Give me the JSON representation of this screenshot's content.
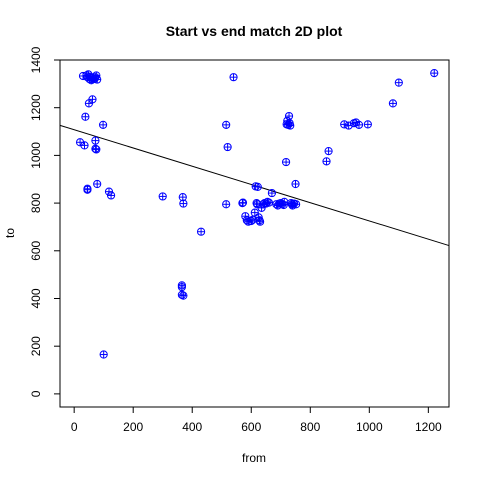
{
  "chart_data": {
    "type": "scatter",
    "title": "Start vs end match 2D plot",
    "xlabel": "from",
    "ylabel": "to",
    "xlim": [
      -48,
      1270
    ],
    "ylim": [
      -55,
      1400
    ],
    "x_ticks": [
      0,
      200,
      400,
      600,
      800,
      1000,
      1200
    ],
    "y_ticks": [
      0,
      200,
      400,
      600,
      800,
      1000,
      1200,
      1400
    ],
    "grid": false,
    "legend": "none",
    "point_color": "#0000ff",
    "marker": "circle-plus",
    "regression_line": {
      "x": [
        -48,
        1270
      ],
      "y": [
        1126,
        622
      ]
    },
    "points": [
      {
        "x": 20,
        "y": 1055
      },
      {
        "x": 30,
        "y": 1333
      },
      {
        "x": 35,
        "y": 1042
      },
      {
        "x": 38,
        "y": 1162
      },
      {
        "x": 42,
        "y": 1335
      },
      {
        "x": 45,
        "y": 1328
      },
      {
        "x": 48,
        "y": 1340
      },
      {
        "x": 50,
        "y": 1218
      },
      {
        "x": 52,
        "y": 1320
      },
      {
        "x": 55,
        "y": 1330
      },
      {
        "x": 58,
        "y": 1315
      },
      {
        "x": 60,
        "y": 1325
      },
      {
        "x": 62,
        "y": 1235
      },
      {
        "x": 65,
        "y": 1320
      },
      {
        "x": 70,
        "y": 1322
      },
      {
        "x": 72,
        "y": 1328
      },
      {
        "x": 75,
        "y": 1335
      },
      {
        "x": 78,
        "y": 1318
      },
      {
        "x": 45,
        "y": 860
      },
      {
        "x": 45,
        "y": 856
      },
      {
        "x": 72,
        "y": 1062
      },
      {
        "x": 72,
        "y": 1028
      },
      {
        "x": 75,
        "y": 1025
      },
      {
        "x": 78,
        "y": 880
      },
      {
        "x": 98,
        "y": 1128
      },
      {
        "x": 100,
        "y": 165
      },
      {
        "x": 118,
        "y": 848
      },
      {
        "x": 125,
        "y": 832
      },
      {
        "x": 300,
        "y": 828
      },
      {
        "x": 365,
        "y": 455
      },
      {
        "x": 365,
        "y": 448
      },
      {
        "x": 365,
        "y": 415
      },
      {
        "x": 370,
        "y": 412
      },
      {
        "x": 368,
        "y": 825
      },
      {
        "x": 370,
        "y": 798
      },
      {
        "x": 430,
        "y": 680
      },
      {
        "x": 515,
        "y": 1128
      },
      {
        "x": 515,
        "y": 795
      },
      {
        "x": 520,
        "y": 1035
      },
      {
        "x": 540,
        "y": 1328
      },
      {
        "x": 570,
        "y": 800
      },
      {
        "x": 572,
        "y": 802
      },
      {
        "x": 580,
        "y": 745
      },
      {
        "x": 585,
        "y": 728
      },
      {
        "x": 590,
        "y": 722
      },
      {
        "x": 600,
        "y": 725
      },
      {
        "x": 605,
        "y": 730
      },
      {
        "x": 612,
        "y": 760
      },
      {
        "x": 615,
        "y": 870
      },
      {
        "x": 618,
        "y": 800
      },
      {
        "x": 620,
        "y": 795
      },
      {
        "x": 622,
        "y": 868
      },
      {
        "x": 625,
        "y": 740
      },
      {
        "x": 628,
        "y": 728
      },
      {
        "x": 630,
        "y": 722
      },
      {
        "x": 635,
        "y": 780
      },
      {
        "x": 640,
        "y": 795
      },
      {
        "x": 645,
        "y": 800
      },
      {
        "x": 650,
        "y": 798
      },
      {
        "x": 655,
        "y": 805
      },
      {
        "x": 660,
        "y": 802
      },
      {
        "x": 670,
        "y": 842
      },
      {
        "x": 685,
        "y": 795
      },
      {
        "x": 690,
        "y": 790
      },
      {
        "x": 695,
        "y": 798
      },
      {
        "x": 700,
        "y": 800
      },
      {
        "x": 705,
        "y": 795
      },
      {
        "x": 710,
        "y": 792
      },
      {
        "x": 712,
        "y": 805
      },
      {
        "x": 718,
        "y": 972
      },
      {
        "x": 720,
        "y": 1130
      },
      {
        "x": 722,
        "y": 1145
      },
      {
        "x": 725,
        "y": 1128
      },
      {
        "x": 728,
        "y": 1165
      },
      {
        "x": 730,
        "y": 1135
      },
      {
        "x": 732,
        "y": 1125
      },
      {
        "x": 735,
        "y": 800
      },
      {
        "x": 738,
        "y": 795
      },
      {
        "x": 740,
        "y": 790
      },
      {
        "x": 745,
        "y": 798
      },
      {
        "x": 750,
        "y": 880
      },
      {
        "x": 752,
        "y": 795
      },
      {
        "x": 855,
        "y": 975
      },
      {
        "x": 862,
        "y": 1018
      },
      {
        "x": 915,
        "y": 1130
      },
      {
        "x": 930,
        "y": 1125
      },
      {
        "x": 948,
        "y": 1135
      },
      {
        "x": 955,
        "y": 1138
      },
      {
        "x": 965,
        "y": 1128
      },
      {
        "x": 995,
        "y": 1130
      },
      {
        "x": 1080,
        "y": 1218
      },
      {
        "x": 1100,
        "y": 1305
      },
      {
        "x": 1220,
        "y": 1345
      }
    ]
  }
}
